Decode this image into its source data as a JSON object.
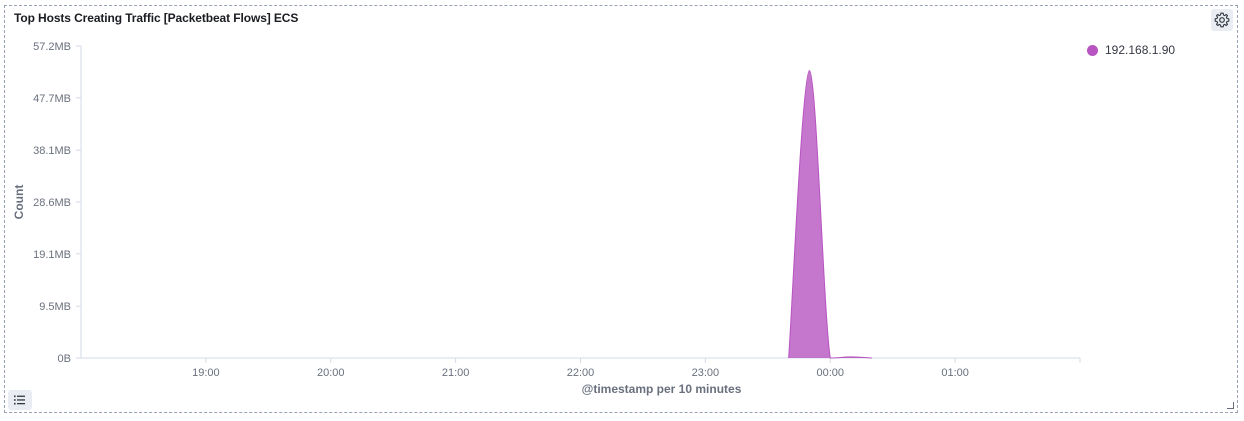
{
  "panel": {
    "title": "Top Hosts Creating Traffic [Packetbeat Flows] ECS",
    "settings_icon": "gear-icon",
    "legend_toggle_icon": "list-icon"
  },
  "chart_data": {
    "type": "area",
    "title": "Top Hosts Creating Traffic [Packetbeat Flows] ECS",
    "xlabel": "@timestamp per 10 minutes",
    "ylabel": "Count",
    "y_ticks": [
      "0B",
      "9.5MB",
      "19.1MB",
      "28.6MB",
      "38.1MB",
      "47.7MB",
      "57.2MB"
    ],
    "y_tick_values": [
      0,
      9.5,
      19.1,
      28.6,
      38.1,
      47.7,
      57.2
    ],
    "y_unit": "MB",
    "ylim": [
      0,
      57.2
    ],
    "x_ticks": [
      "19:00",
      "20:00",
      "21:00",
      "22:00",
      "23:00",
      "00:00",
      "01:00"
    ],
    "x_tick_hours": [
      19,
      20,
      21,
      22,
      23,
      24,
      25
    ],
    "xlim_hours": [
      18.0,
      26.0
    ],
    "grid": false,
    "legend_position": "top-right",
    "series": [
      {
        "name": "192.168.1.90",
        "color": "#b754c1",
        "points": [
          {
            "x": "23:40",
            "x_hours": 23.6667,
            "y": 0
          },
          {
            "x": "23:50",
            "x_hours": 23.8333,
            "y": 52.7
          },
          {
            "x": "00:00",
            "x_hours": 24.0,
            "y": 0
          },
          {
            "x": "00:10",
            "x_hours": 24.1667,
            "y": 0.2
          },
          {
            "x": "00:20",
            "x_hours": 24.3333,
            "y": 0
          }
        ]
      }
    ]
  }
}
